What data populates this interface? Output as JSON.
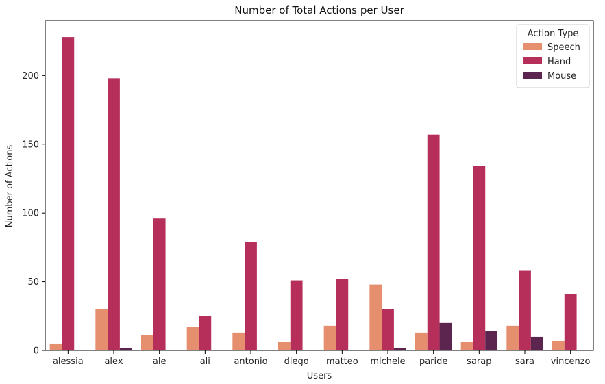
{
  "chart_data": {
    "type": "bar",
    "title": "Number of Total Actions per User",
    "xlabel": "Users",
    "ylabel": "Number of Actions",
    "ylim": [
      0,
      240
    ],
    "yticks": [
      0,
      50,
      100,
      150,
      200
    ],
    "grid": false,
    "categories": [
      "alessia",
      "alex",
      "ale",
      "ali",
      "antonio",
      "diego",
      "matteo",
      "michele",
      "paride",
      "sarap",
      "sara",
      "vincenzo"
    ],
    "legend": {
      "title": "Action Type",
      "placement": "top-right"
    },
    "series": [
      {
        "name": "Speech",
        "color": "#e58f6f",
        "values": [
          5,
          30,
          11,
          17,
          13,
          6,
          18,
          48,
          13,
          6,
          18,
          7
        ]
      },
      {
        "name": "Hand",
        "color": "#b62e5a",
        "values": [
          228,
          198,
          96,
          25,
          79,
          51,
          52,
          30,
          157,
          134,
          58,
          41
        ]
      },
      {
        "name": "Mouse",
        "color": "#5c2550",
        "values": [
          0,
          2,
          0,
          0,
          0,
          0,
          0,
          2,
          20,
          14,
          10,
          0
        ]
      }
    ]
  }
}
